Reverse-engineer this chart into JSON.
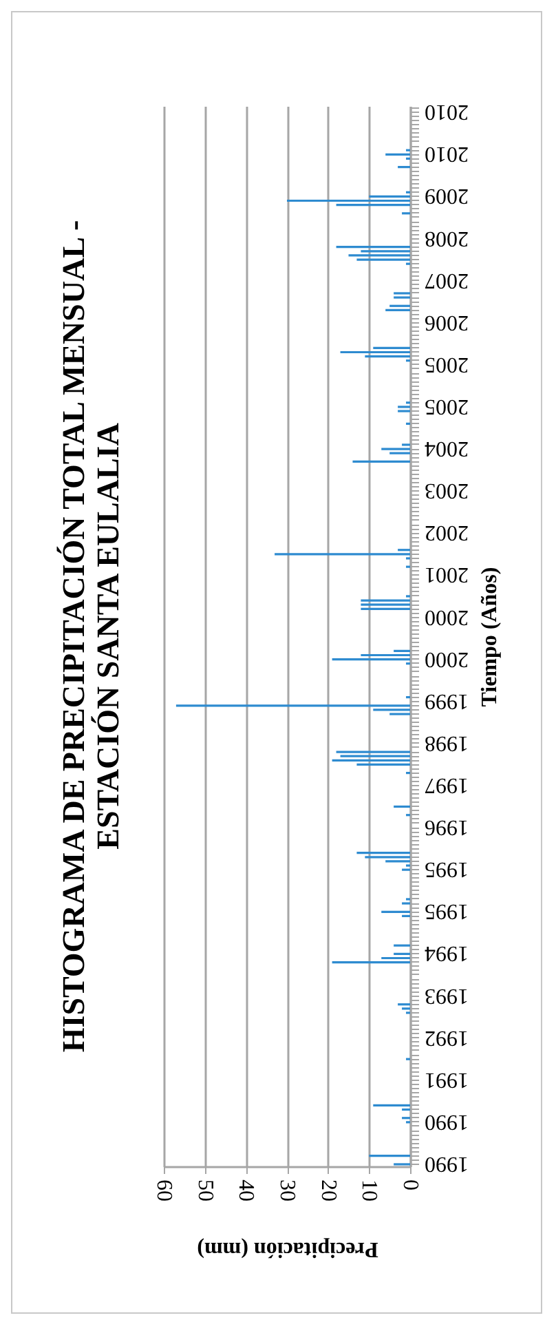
{
  "chart_data": {
    "type": "bar",
    "orientation": "horizontal",
    "title": "HISTOGRAMA DE PRECIPITACIÓN TOTAL MENSUAL - ESTACIÓN SANTA EULALIA",
    "xlabel": "Precipitación (mm)",
    "ylabel": "Tiempo (Años)",
    "categories": [
      null,
      "2010",
      null,
      null,
      null,
      null,
      null,
      null,
      null,
      null,
      null,
      "2010",
      null,
      null,
      null,
      null,
      null,
      null,
      null,
      null,
      null,
      "2009",
      null,
      null,
      null,
      null,
      null,
      null,
      null,
      null,
      null,
      "2008",
      null,
      null,
      null,
      null,
      null,
      null,
      null,
      null,
      null,
      "2007",
      null,
      null,
      null,
      null,
      null,
      null,
      null,
      null,
      null,
      "2006",
      null,
      null,
      null,
      null,
      null,
      null,
      null,
      null,
      null,
      "2005",
      null,
      null,
      null,
      null,
      null,
      null,
      null,
      null,
      null,
      "2005",
      null,
      null,
      null,
      null,
      null,
      null,
      null,
      null,
      null,
      "2004",
      null,
      null,
      null,
      null,
      null,
      null,
      null,
      null,
      null,
      "2003",
      null,
      null,
      null,
      null,
      null,
      null,
      null,
      null,
      null,
      "2002",
      null,
      null,
      null,
      null,
      null,
      null,
      null,
      null,
      null,
      "2001",
      null,
      null,
      null,
      null,
      null,
      null,
      null,
      null,
      null,
      "2000",
      null,
      null,
      null,
      null,
      null,
      null,
      null,
      null,
      null,
      "2000",
      null,
      null,
      null,
      null,
      null,
      null,
      null,
      null,
      null,
      "1999",
      null,
      null,
      null,
      null,
      null,
      null,
      null,
      null,
      null,
      "1998",
      null,
      null,
      null,
      null,
      null,
      null,
      null,
      null,
      null,
      "1997",
      null,
      null,
      null,
      null,
      null,
      null,
      null,
      null,
      null,
      "1996",
      null,
      null,
      null,
      null,
      null,
      null,
      null,
      null,
      null,
      "1995",
      null,
      null,
      null,
      null,
      null,
      null,
      null,
      null,
      null,
      "1995",
      null,
      null,
      null,
      null,
      null,
      null,
      null,
      null,
      null,
      "1994",
      null,
      null,
      null,
      null,
      null,
      null,
      null,
      null,
      null,
      "1993",
      null,
      null,
      null,
      null,
      null,
      null,
      null,
      null,
      null,
      "1992",
      null,
      null,
      null,
      null,
      null,
      null,
      null,
      null,
      null,
      "1991",
      null,
      null,
      null,
      null,
      null,
      null,
      null,
      null,
      null,
      "1990",
      null,
      null,
      null,
      null,
      null,
      null,
      null,
      null,
      null,
      "1990"
    ],
    "values": [
      0,
      0,
      0,
      0,
      0,
      0,
      0,
      0,
      0,
      0,
      1,
      6,
      1,
      0,
      3,
      0,
      0,
      0,
      0,
      0,
      1,
      10,
      30,
      18,
      0,
      2,
      0,
      0,
      0,
      0,
      0,
      0,
      0,
      18,
      12,
      15,
      13,
      1,
      0,
      0,
      0,
      0,
      0,
      0,
      4,
      4,
      0,
      5,
      6,
      0,
      0,
      0,
      0,
      0,
      0,
      0,
      0,
      9,
      17,
      11,
      1,
      0,
      0,
      0,
      0,
      0,
      0,
      0,
      0,
      0,
      1,
      3,
      3,
      0,
      0,
      1,
      0,
      0,
      0,
      0,
      2,
      7,
      5,
      0,
      14,
      0,
      0,
      0,
      0,
      0,
      0,
      0,
      0,
      0,
      0,
      0,
      0,
      0,
      0,
      0,
      0,
      0,
      0,
      0,
      0,
      3,
      33,
      1,
      0,
      1,
      0,
      0,
      0,
      0,
      0,
      0,
      1,
      12,
      12,
      12,
      0,
      0,
      0,
      0,
      0,
      0,
      0,
      0,
      0,
      4,
      12,
      19,
      1,
      0,
      0,
      0,
      0,
      0,
      0,
      0,
      1,
      0,
      57,
      9,
      5,
      0,
      0,
      0,
      0,
      0,
      0,
      0,
      0,
      18,
      17,
      19,
      13,
      0,
      1,
      0,
      0,
      0,
      0,
      0,
      0,
      0,
      4,
      0,
      1,
      0,
      0,
      0,
      0,
      0,
      0,
      0,
      0,
      13,
      11,
      6,
      1,
      2,
      0,
      0,
      0,
      0,
      0,
      0,
      1,
      2,
      0,
      7,
      2,
      0,
      0,
      0,
      0,
      0,
      0,
      4,
      0,
      4,
      7,
      19,
      0,
      0,
      0,
      0,
      0,
      0,
      0,
      0,
      0,
      3,
      2,
      1,
      0,
      0,
      0,
      0,
      0,
      0,
      0,
      0,
      0,
      0,
      1,
      0,
      0,
      0,
      0,
      0,
      0,
      0,
      0,
      0,
      0,
      9,
      2,
      0,
      2,
      1,
      0,
      0,
      0,
      0,
      0,
      0,
      0,
      10,
      0,
      4
    ],
    "color": "#2e8bd0",
    "xlim": [
      60,
      0
    ],
    "xticks": [
      60,
      50,
      40,
      30,
      20,
      10,
      0
    ],
    "grid": "x"
  }
}
